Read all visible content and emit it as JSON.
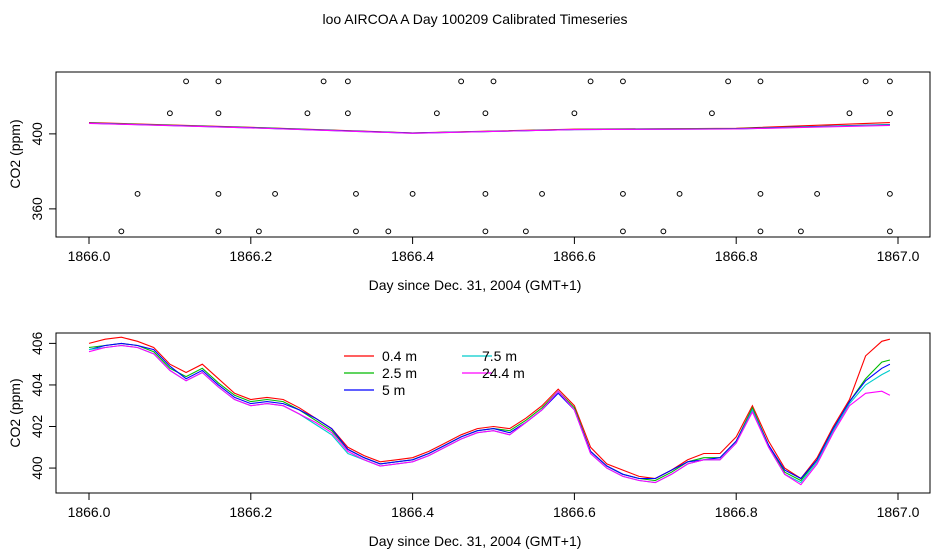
{
  "title": "loo AIRCOA A  Day 100209  Calibrated Timeseries",
  "colors": {
    "0.4 m": "#ff0000",
    "2.5 m": "#00bb00",
    "5 m": "#0000ff",
    "7.5 m": "#00cccc",
    "24.4 m": "#ff00ff",
    "markers": "#000000"
  },
  "chart_data": [
    {
      "type": "line",
      "xlabel": "Day since Dec. 31, 2004 (GMT+1)",
      "ylabel": "CO2 (ppm)",
      "xlim": [
        1866.0,
        1867.0
      ],
      "ylim": [
        345,
        433
      ],
      "xticks": [
        1866.0,
        1866.2,
        1866.4,
        1866.6,
        1866.8,
        1867.0
      ],
      "xtick_labels": [
        "1866.0",
        "1866.2",
        "1866.4",
        "1866.6",
        "1866.8",
        "1867.0"
      ],
      "yticks": [
        360,
        400
      ],
      "ytick_labels": [
        "360",
        "400"
      ],
      "series": [
        {
          "name": "0.4 m",
          "x": [
            1866.0,
            1866.2,
            1866.4,
            1866.6,
            1866.8,
            1866.99
          ],
          "y": [
            406.0,
            403.5,
            400.5,
            402.5,
            403.0,
            406.0
          ]
        },
        {
          "name": "2.5 m",
          "x": [
            1866.0,
            1866.2,
            1866.4,
            1866.6,
            1866.8,
            1866.99
          ],
          "y": [
            405.8,
            403.4,
            400.4,
            402.4,
            402.8,
            405.0
          ]
        },
        {
          "name": "5 m",
          "x": [
            1866.0,
            1866.2,
            1866.4,
            1866.6,
            1866.8,
            1866.99
          ],
          "y": [
            405.7,
            403.3,
            400.4,
            402.3,
            402.7,
            404.9
          ]
        },
        {
          "name": "7.5 m",
          "x": [
            1866.0,
            1866.2,
            1866.4,
            1866.6,
            1866.8,
            1866.99
          ],
          "y": [
            405.7,
            403.2,
            400.3,
            402.3,
            402.6,
            404.8
          ]
        },
        {
          "name": "24.4 m",
          "x": [
            1866.0,
            1866.2,
            1866.4,
            1866.6,
            1866.8,
            1866.99
          ],
          "y": [
            405.6,
            403.2,
            400.3,
            402.3,
            402.6,
            404.5
          ]
        }
      ],
      "markers": {
        "x": [
          1866.12,
          1866.16,
          1866.29,
          1866.32,
          1866.46,
          1866.5,
          1866.62,
          1866.66,
          1866.79,
          1866.83,
          1866.96,
          1866.99,
          1866.1,
          1866.16,
          1866.27,
          1866.32,
          1866.43,
          1866.49,
          1866.6,
          1866.77,
          1866.94,
          1866.99,
          1866.06,
          1866.16,
          1866.23,
          1866.33,
          1866.4,
          1866.49,
          1866.56,
          1866.66,
          1866.73,
          1866.83,
          1866.9,
          1866.99,
          1866.04,
          1866.16,
          1866.21,
          1866.33,
          1866.37,
          1866.49,
          1866.54,
          1866.66,
          1866.71,
          1866.83,
          1866.88,
          1866.99
        ],
        "y": [
          428,
          428,
          428,
          428,
          428,
          428,
          428,
          428,
          428,
          428,
          428,
          428,
          411,
          411,
          411,
          411,
          411,
          411,
          411,
          411,
          411,
          411,
          368,
          368,
          368,
          368,
          368,
          368,
          368,
          368,
          368,
          368,
          368,
          368,
          348,
          348,
          348,
          348,
          348,
          348,
          348,
          348,
          348,
          348,
          348,
          348
        ]
      }
    },
    {
      "type": "line",
      "xlabel": "Day since Dec. 31, 2004 (GMT+1)",
      "ylabel": "CO2 (ppm)",
      "xlim": [
        1866.0,
        1867.0
      ],
      "ylim": [
        398.8,
        406.5
      ],
      "xticks": [
        1866.0,
        1866.2,
        1866.4,
        1866.6,
        1866.8,
        1867.0
      ],
      "xtick_labels": [
        "1866.0",
        "1866.2",
        "1866.4",
        "1866.6",
        "1866.8",
        "1867.0"
      ],
      "yticks": [
        400,
        402,
        404,
        406
      ],
      "ytick_labels": [
        "400",
        "402",
        "404",
        "406"
      ],
      "legend": {
        "position": "top-center",
        "columns": 2
      },
      "x": [
        1866.0,
        1866.02,
        1866.04,
        1866.06,
        1866.08,
        1866.1,
        1866.12,
        1866.14,
        1866.16,
        1866.18,
        1866.2,
        1866.22,
        1866.24,
        1866.26,
        1866.28,
        1866.3,
        1866.32,
        1866.34,
        1866.36,
        1866.38,
        1866.4,
        1866.42,
        1866.44,
        1866.46,
        1866.48,
        1866.5,
        1866.52,
        1866.54,
        1866.56,
        1866.58,
        1866.6,
        1866.62,
        1866.64,
        1866.66,
        1866.68,
        1866.7,
        1866.72,
        1866.74,
        1866.76,
        1866.78,
        1866.8,
        1866.82,
        1866.84,
        1866.86,
        1866.88,
        1866.9,
        1866.92,
        1866.94,
        1866.96,
        1866.98,
        1866.99
      ],
      "series": [
        {
          "name": "0.4 m",
          "values": [
            406.0,
            406.2,
            406.3,
            406.1,
            405.8,
            405.0,
            404.6,
            405.0,
            404.3,
            403.6,
            403.3,
            403.4,
            403.3,
            402.9,
            402.4,
            401.9,
            401.0,
            400.6,
            400.3,
            400.4,
            400.5,
            400.8,
            401.2,
            401.6,
            401.9,
            402.0,
            401.9,
            402.4,
            403.0,
            403.8,
            403.0,
            401.0,
            400.2,
            399.9,
            399.6,
            399.5,
            399.9,
            400.4,
            400.7,
            400.7,
            401.5,
            403.0,
            401.3,
            400.0,
            399.5,
            400.5,
            402.0,
            403.3,
            405.4,
            406.1,
            406.2
          ]
        },
        {
          "name": "2.5 m",
          "values": [
            405.8,
            405.9,
            406.0,
            405.9,
            405.6,
            404.8,
            404.4,
            404.8,
            404.1,
            403.5,
            403.2,
            403.3,
            403.2,
            402.8,
            402.3,
            401.8,
            400.9,
            400.5,
            400.2,
            400.3,
            400.4,
            400.7,
            401.1,
            401.5,
            401.8,
            401.9,
            401.8,
            402.3,
            402.9,
            403.7,
            402.9,
            400.8,
            400.1,
            399.7,
            399.5,
            399.4,
            399.8,
            400.3,
            400.5,
            400.5,
            401.3,
            402.9,
            401.1,
            399.8,
            399.4,
            400.4,
            401.9,
            403.2,
            404.3,
            405.1,
            405.2
          ]
        },
        {
          "name": "5 m",
          "values": [
            405.7,
            405.9,
            406.0,
            405.9,
            405.7,
            404.9,
            404.3,
            404.7,
            404.0,
            403.4,
            403.1,
            403.2,
            403.1,
            402.8,
            402.4,
            401.9,
            400.9,
            400.5,
            400.2,
            400.3,
            400.4,
            400.7,
            401.1,
            401.5,
            401.8,
            401.9,
            401.7,
            402.2,
            402.8,
            403.6,
            402.8,
            400.8,
            400.1,
            399.7,
            399.5,
            399.5,
            399.9,
            400.3,
            400.4,
            400.5,
            401.3,
            402.8,
            401.1,
            399.9,
            399.5,
            400.4,
            401.9,
            403.2,
            404.2,
            404.8,
            405.0
          ]
        },
        {
          "name": "7.5 m",
          "values": [
            405.7,
            405.8,
            405.9,
            405.8,
            405.5,
            404.7,
            404.2,
            404.6,
            403.9,
            403.3,
            403.0,
            403.1,
            403.0,
            402.6,
            402.1,
            401.6,
            400.7,
            400.4,
            400.1,
            400.2,
            400.3,
            400.6,
            401.0,
            401.4,
            401.7,
            401.8,
            401.6,
            402.2,
            402.8,
            403.7,
            402.8,
            400.7,
            400.0,
            399.6,
            399.4,
            399.3,
            399.7,
            400.2,
            400.4,
            400.4,
            401.2,
            402.8,
            401.0,
            399.7,
            399.3,
            400.3,
            401.8,
            403.1,
            404.0,
            404.5,
            404.7
          ]
        },
        {
          "name": "24.4 m",
          "values": [
            405.6,
            405.8,
            405.9,
            405.8,
            405.5,
            404.7,
            404.2,
            404.6,
            403.9,
            403.3,
            403.0,
            403.1,
            403.0,
            402.6,
            402.2,
            401.7,
            400.8,
            400.4,
            400.1,
            400.2,
            400.3,
            400.6,
            401.0,
            401.4,
            401.7,
            401.8,
            401.6,
            402.2,
            402.8,
            403.7,
            402.8,
            400.7,
            400.0,
            399.6,
            399.4,
            399.3,
            399.7,
            400.2,
            400.4,
            400.4,
            401.2,
            402.7,
            401.0,
            399.7,
            399.2,
            400.2,
            401.7,
            403.0,
            403.6,
            403.7,
            403.5
          ]
        }
      ]
    }
  ]
}
